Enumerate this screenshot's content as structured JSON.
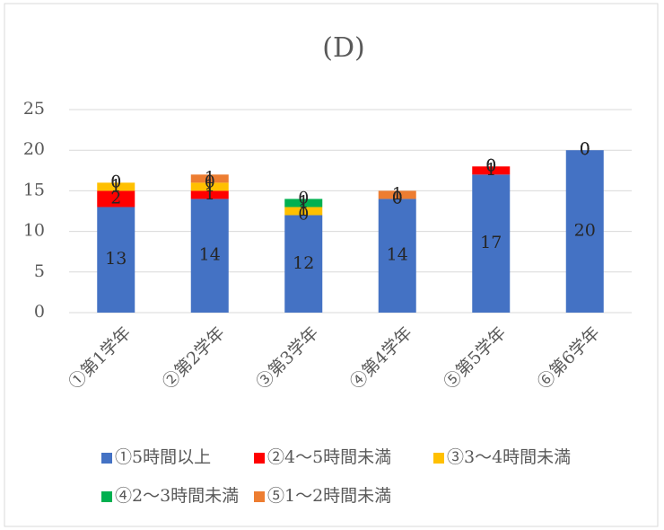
{
  "chart_data": {
    "type": "stacked_bar",
    "title": "(D)",
    "categories": [
      "①第1学年",
      "②第2学年",
      "③第3学年",
      "④第4学年",
      "⑤第5学年",
      "⑥第6学年"
    ],
    "series": [
      {
        "name": "①5時間以上",
        "color": "#4472c4",
        "values": [
          13,
          14,
          12,
          14,
          17,
          20
        ]
      },
      {
        "name": "②4～5時間未満",
        "color": "#ff0000",
        "values": [
          2,
          1,
          0,
          0,
          1,
          0
        ]
      },
      {
        "name": "③3～4時間未満",
        "color": "#ffc000",
        "values": [
          1,
          1,
          1,
          0,
          0,
          0
        ]
      },
      {
        "name": "④2～3時間未満",
        "color": "#00b050",
        "values": [
          0,
          0,
          1,
          0,
          0,
          0
        ]
      },
      {
        "name": "⑤1～2時間未満",
        "color": "#ed7d31",
        "values": [
          0,
          1,
          0,
          1,
          0,
          0
        ]
      }
    ],
    "ylim": [
      0,
      25
    ],
    "yticks": [
      0,
      5,
      10,
      15,
      20,
      25
    ],
    "grid": true
  }
}
